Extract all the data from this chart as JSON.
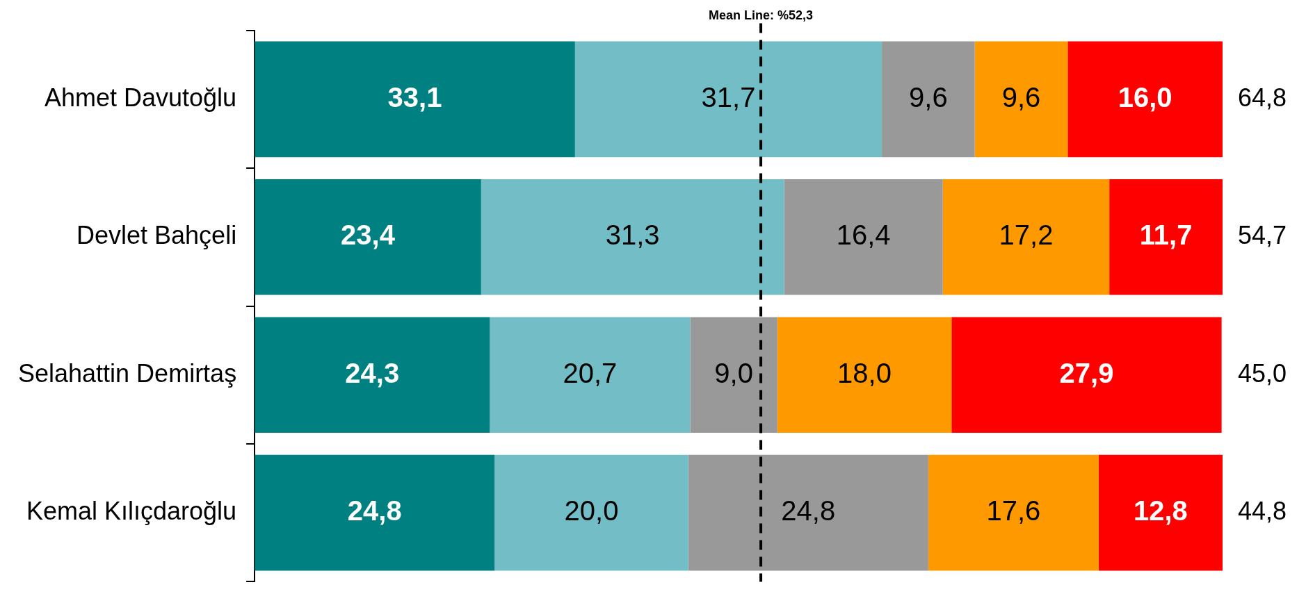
{
  "chart_data": {
    "type": "bar",
    "orientation": "horizontal",
    "stacked": true,
    "categories": [
      "Ahmet Davutoğlu",
      "Devlet Bahçeli",
      "Selahattin Demirtaş",
      "Kemal Kılıçdaroğlu"
    ],
    "series": [
      {
        "color": "#008080",
        "values": [
          33.1,
          23.4,
          24.3,
          24.8
        ],
        "value_labels": [
          "33,1",
          "23,4",
          "24,3",
          "24,8"
        ]
      },
      {
        "color": "#73bec6",
        "values": [
          31.7,
          31.3,
          20.7,
          20.0
        ],
        "value_labels": [
          "31,7",
          "31,3",
          "20,7",
          "20,0"
        ]
      },
      {
        "color": "#999999",
        "values": [
          9.6,
          16.4,
          9.0,
          24.8
        ],
        "value_labels": [
          "9,6",
          "16,4",
          "9,0",
          "24,8"
        ]
      },
      {
        "color": "#ff9900",
        "values": [
          9.6,
          17.2,
          18.0,
          17.6
        ],
        "value_labels": [
          "9,6",
          "17,2",
          "18,0",
          "17,6"
        ]
      },
      {
        "color": "#ff0000",
        "values": [
          16.0,
          11.7,
          27.9,
          12.8
        ],
        "value_labels": [
          "16,0",
          "11,7",
          "27,9",
          "12,8"
        ]
      }
    ],
    "annotations": [
      "64,8",
      "54,7",
      "45,0",
      "44,8"
    ],
    "xlim": [
      0,
      100
    ],
    "ref_lines": [
      {
        "axis": "x",
        "value": 52.3,
        "label": "Mean Line: %52,3",
        "color": "#000000",
        "line_style": "dashed"
      }
    ],
    "grid": false,
    "legend": false,
    "tick_labels": "y"
  }
}
